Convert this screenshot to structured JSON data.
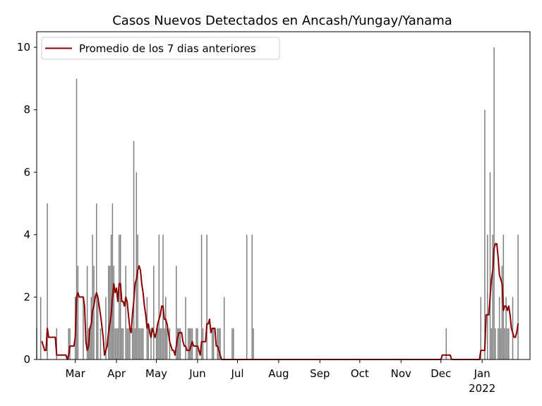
{
  "chart_data": {
    "type": "bar",
    "title": "Casos Nuevos Detectados en Ancash/Yungay/Yanama",
    "xlabel": "",
    "ylabel": "",
    "ylim": [
      0,
      10.5
    ],
    "yticks": [
      0,
      2,
      4,
      6,
      8,
      10
    ],
    "x_range": [
      "2021-01-31",
      "2022-02-06"
    ],
    "xtick_labels": [
      {
        "date": "2021-03-01",
        "label": "Mar"
      },
      {
        "date": "2021-04-01",
        "label": "Apr"
      },
      {
        "date": "2021-05-01",
        "label": "May"
      },
      {
        "date": "2021-06-01",
        "label": "Jun"
      },
      {
        "date": "2021-07-01",
        "label": "Jul"
      },
      {
        "date": "2021-08-01",
        "label": "Aug"
      },
      {
        "date": "2021-09-01",
        "label": "Sep"
      },
      {
        "date": "2021-10-01",
        "label": "Oct"
      },
      {
        "date": "2021-11-01",
        "label": "Nov"
      },
      {
        "date": "2021-12-01",
        "label": "Dec"
      },
      {
        "date": "2022-01-01",
        "label": "Jan",
        "sublabel": "2022"
      }
    ],
    "grid": false,
    "legend_position": "top-left",
    "bar_color": "#808080",
    "line_color": "#8b0000",
    "series": [
      {
        "type": "bar",
        "points": [
          [
            "2021-01-31",
            1
          ],
          [
            "2021-02-03",
            2
          ],
          [
            "2021-02-08",
            5
          ],
          [
            "2021-02-15",
            1
          ],
          [
            "2021-02-24",
            1
          ],
          [
            "2021-02-25",
            1
          ],
          [
            "2021-03-01",
            2
          ],
          [
            "2021-03-02",
            9
          ],
          [
            "2021-03-03",
            3
          ],
          [
            "2021-03-07",
            2
          ],
          [
            "2021-03-10",
            3
          ],
          [
            "2021-03-11",
            1
          ],
          [
            "2021-03-12",
            1
          ],
          [
            "2021-03-13",
            2
          ],
          [
            "2021-03-14",
            4
          ],
          [
            "2021-03-15",
            3
          ],
          [
            "2021-03-17",
            5
          ],
          [
            "2021-03-18",
            2
          ],
          [
            "2021-03-20",
            1
          ],
          [
            "2021-03-24",
            2
          ],
          [
            "2021-03-26",
            3
          ],
          [
            "2021-03-27",
            3
          ],
          [
            "2021-03-28",
            4
          ],
          [
            "2021-03-29",
            5
          ],
          [
            "2021-03-30",
            3
          ],
          [
            "2021-03-31",
            1
          ],
          [
            "2021-04-01",
            1
          ],
          [
            "2021-04-02",
            1
          ],
          [
            "2021-04-03",
            4
          ],
          [
            "2021-04-04",
            4
          ],
          [
            "2021-04-05",
            1
          ],
          [
            "2021-04-06",
            1
          ],
          [
            "2021-04-08",
            3
          ],
          [
            "2021-04-09",
            1
          ],
          [
            "2021-04-10",
            1
          ],
          [
            "2021-04-11",
            1
          ],
          [
            "2021-04-13",
            1
          ],
          [
            "2021-04-14",
            7
          ],
          [
            "2021-04-15",
            1
          ],
          [
            "2021-04-16",
            6
          ],
          [
            "2021-04-17",
            4
          ],
          [
            "2021-04-18",
            1
          ],
          [
            "2021-04-19",
            1
          ],
          [
            "2021-04-20",
            1
          ],
          [
            "2021-04-21",
            1
          ],
          [
            "2021-04-24",
            2
          ],
          [
            "2021-04-25",
            1
          ],
          [
            "2021-04-27",
            1
          ],
          [
            "2021-04-29",
            3
          ],
          [
            "2021-05-01",
            1
          ],
          [
            "2021-05-02",
            1
          ],
          [
            "2021-05-03",
            4
          ],
          [
            "2021-05-04",
            1
          ],
          [
            "2021-05-05",
            1
          ],
          [
            "2021-05-06",
            4
          ],
          [
            "2021-05-07",
            1
          ],
          [
            "2021-05-08",
            2
          ],
          [
            "2021-05-09",
            1
          ],
          [
            "2021-05-11",
            1
          ],
          [
            "2021-05-16",
            3
          ],
          [
            "2021-05-17",
            1
          ],
          [
            "2021-05-18",
            1
          ],
          [
            "2021-05-19",
            1
          ],
          [
            "2021-05-23",
            2
          ],
          [
            "2021-05-25",
            1
          ],
          [
            "2021-05-26",
            1
          ],
          [
            "2021-05-27",
            1
          ],
          [
            "2021-05-28",
            1
          ],
          [
            "2021-05-31",
            1
          ],
          [
            "2021-06-01",
            1
          ],
          [
            "2021-06-04",
            4
          ],
          [
            "2021-06-05",
            1
          ],
          [
            "2021-06-08",
            4
          ]
        ]
      },
      {
        "type": "line",
        "name": "Promedio de los 7 dias anteriores",
        "points": [
          [
            "2021-02-04",
            0.57
          ],
          [
            "2021-02-06",
            0.29
          ],
          [
            "2021-02-07",
            0.29
          ],
          [
            "2021-02-08",
            1.0
          ],
          [
            "2021-02-09",
            0.71
          ],
          [
            "2021-02-14",
            0.71
          ],
          [
            "2021-02-15",
            0.14
          ],
          [
            "2021-02-22",
            0.14
          ],
          [
            "2021-02-23",
            0.0
          ],
          [
            "2021-02-24",
            0.14
          ],
          [
            "2021-02-25",
            0.43
          ],
          [
            "2021-02-28",
            0.43
          ],
          [
            "2021-03-01",
            0.71
          ],
          [
            "2021-03-02",
            2.0
          ],
          [
            "2021-03-03",
            2.14
          ],
          [
            "2021-03-04",
            2.0
          ],
          [
            "2021-03-07",
            2.0
          ],
          [
            "2021-03-08",
            1.71
          ],
          [
            "2021-03-09",
            0.57
          ],
          [
            "2021-03-10",
            0.29
          ],
          [
            "2021-03-11",
            0.43
          ],
          [
            "2021-03-12",
            1.0
          ],
          [
            "2021-03-13",
            1.14
          ],
          [
            "2021-03-14",
            1.57
          ],
          [
            "2021-03-15",
            1.71
          ],
          [
            "2021-03-16",
            2.0
          ],
          [
            "2021-03-17",
            2.14
          ],
          [
            "2021-03-18",
            2.0
          ],
          [
            "2021-03-20",
            1.43
          ],
          [
            "2021-03-22",
            0.71
          ],
          [
            "2021-03-23",
            0.14
          ],
          [
            "2021-03-24",
            0.29
          ],
          [
            "2021-03-25",
            0.43
          ],
          [
            "2021-03-26",
            0.86
          ],
          [
            "2021-03-27",
            1.14
          ],
          [
            "2021-03-28",
            1.43
          ],
          [
            "2021-03-29",
            2.0
          ],
          [
            "2021-03-30",
            2.43
          ],
          [
            "2021-03-31",
            2.14
          ],
          [
            "2021-04-01",
            2.29
          ],
          [
            "2021-04-02",
            1.86
          ],
          [
            "2021-04-03",
            2.43
          ],
          [
            "2021-04-04",
            2.43
          ],
          [
            "2021-04-05",
            1.86
          ],
          [
            "2021-04-06",
            1.86
          ],
          [
            "2021-04-07",
            1.71
          ],
          [
            "2021-04-08",
            2.0
          ],
          [
            "2021-04-09",
            1.86
          ],
          [
            "2021-04-10",
            1.43
          ],
          [
            "2021-04-11",
            1.0
          ],
          [
            "2021-04-12",
            0.86
          ],
          [
            "2021-04-13",
            1.43
          ],
          [
            "2021-04-14",
            1.86
          ],
          [
            "2021-04-15",
            2.43
          ],
          [
            "2021-04-16",
            2.57
          ],
          [
            "2021-04-17",
            2.86
          ],
          [
            "2021-04-18",
            3.0
          ],
          [
            "2021-04-19",
            2.86
          ],
          [
            "2021-04-20",
            2.43
          ],
          [
            "2021-04-21",
            2.14
          ],
          [
            "2021-04-22",
            1.71
          ],
          [
            "2021-04-23",
            1.43
          ],
          [
            "2021-04-24",
            1.0
          ],
          [
            "2021-04-25",
            1.14
          ],
          [
            "2021-04-26",
            0.86
          ],
          [
            "2021-04-27",
            0.71
          ],
          [
            "2021-04-28",
            1.0
          ],
          [
            "2021-04-29",
            0.86
          ],
          [
            "2021-04-30",
            0.71
          ],
          [
            "2021-05-01",
            0.86
          ],
          [
            "2021-05-02",
            1.14
          ],
          [
            "2021-05-03",
            1.29
          ],
          [
            "2021-05-04",
            1.43
          ],
          [
            "2021-05-05",
            1.71
          ],
          [
            "2021-05-06",
            1.71
          ],
          [
            "2021-05-07",
            1.29
          ],
          [
            "2021-05-08",
            1.29
          ],
          [
            "2021-05-09",
            1.14
          ],
          [
            "2021-05-10",
            0.86
          ],
          [
            "2021-05-11",
            0.57
          ],
          [
            "2021-05-12",
            0.43
          ],
          [
            "2021-05-13",
            0.29
          ],
          [
            "2021-05-14",
            0.29
          ],
          [
            "2021-05-15",
            0.14
          ],
          [
            "2021-05-16",
            0.43
          ],
          [
            "2021-05-17",
            0.71
          ],
          [
            "2021-05-18",
            0.86
          ],
          [
            "2021-05-20",
            0.86
          ],
          [
            "2021-05-21",
            0.57
          ],
          [
            "2021-05-22",
            0.43
          ],
          [
            "2021-05-23",
            0.43
          ],
          [
            "2021-05-24",
            0.29
          ],
          [
            "2021-05-25",
            0.29
          ],
          [
            "2021-05-26",
            0.29
          ],
          [
            "2021-05-27",
            0.43
          ],
          [
            "2021-05-28",
            0.57
          ],
          [
            "2021-05-29",
            0.43
          ],
          [
            "2021-05-30",
            0.43
          ],
          [
            "2021-05-31",
            0.43
          ],
          [
            "2021-06-01",
            0.43
          ],
          [
            "2021-06-02",
            0.29
          ],
          [
            "2021-06-03",
            0.14
          ],
          [
            "2021-06-04",
            0.57
          ],
          [
            "2021-06-07",
            0.57
          ],
          [
            "2021-06-08",
            1.14
          ],
          [
            "2021-06-09",
            1.14
          ],
          [
            "2021-06-10",
            1.29
          ],
          [
            "2021-06-11",
            0.86
          ],
          [
            "2021-06-12",
            1.0
          ],
          [
            "2021-06-14",
            1.0
          ],
          [
            "2021-06-15",
            0.43
          ],
          [
            "2021-06-16",
            0.43
          ],
          [
            "2021-06-18",
            0.14
          ],
          [
            "2021-06-19",
            0.0
          ],
          [
            "2021-12-01",
            0.0
          ],
          [
            "2021-12-02",
            0.14
          ],
          [
            "2021-12-08",
            0.14
          ],
          [
            "2021-12-09",
            0.0
          ],
          [
            "2021-12-30",
            0.0
          ],
          [
            "2021-12-31",
            0.29
          ],
          [
            "2022-01-03",
            0.29
          ],
          [
            "2022-01-04",
            1.43
          ],
          [
            "2022-01-06",
            1.43
          ],
          [
            "2022-01-07",
            2.0
          ],
          [
            "2022-01-08",
            2.57
          ],
          [
            "2022-01-09",
            2.86
          ],
          [
            "2022-01-10",
            3.57
          ],
          [
            "2022-01-11",
            3.71
          ],
          [
            "2022-01-12",
            3.71
          ],
          [
            "2022-01-13",
            3.29
          ],
          [
            "2022-01-14",
            2.71
          ],
          [
            "2022-01-15",
            2.57
          ],
          [
            "2022-01-16",
            2.43
          ],
          [
            "2022-01-17",
            1.57
          ],
          [
            "2022-01-18",
            1.71
          ],
          [
            "2022-01-19",
            1.71
          ],
          [
            "2022-01-20",
            1.57
          ],
          [
            "2022-01-21",
            1.71
          ],
          [
            "2022-01-22",
            1.43
          ],
          [
            "2022-01-23",
            1.0
          ],
          [
            "2022-01-24",
            0.86
          ],
          [
            "2022-01-25",
            0.71
          ],
          [
            "2022-01-26",
            0.71
          ],
          [
            "2022-01-27",
            0.86
          ],
          [
            "2022-01-28",
            1.14
          ]
        ]
      },
      {
        "type": "bar",
        "points": [
          [
            "2021-06-12",
            1
          ],
          [
            "2021-06-13",
            1
          ],
          [
            "2021-06-16",
            1
          ],
          [
            "2021-06-17",
            1
          ],
          [
            "2021-06-18",
            1
          ],
          [
            "2021-06-21",
            2
          ],
          [
            "2021-06-27",
            1
          ],
          [
            "2021-06-28",
            1
          ],
          [
            "2021-07-08",
            4
          ],
          [
            "2021-07-12",
            4
          ],
          [
            "2021-07-13",
            1
          ],
          [
            "2021-12-05",
            1
          ],
          [
            "2021-12-31",
            2
          ],
          [
            "2022-01-03",
            8
          ],
          [
            "2022-01-05",
            4
          ],
          [
            "2022-01-07",
            6
          ],
          [
            "2022-01-08",
            1
          ],
          [
            "2022-01-09",
            4
          ],
          [
            "2022-01-10",
            10
          ],
          [
            "2022-01-11",
            1
          ],
          [
            "2022-01-13",
            1
          ],
          [
            "2022-01-14",
            2
          ],
          [
            "2022-01-15",
            1
          ],
          [
            "2022-01-16",
            3
          ],
          [
            "2022-01-17",
            4
          ],
          [
            "2022-01-18",
            1
          ],
          [
            "2022-01-19",
            2
          ],
          [
            "2022-01-20",
            1
          ],
          [
            "2022-01-21",
            1
          ],
          [
            "2022-01-24",
            2
          ],
          [
            "2022-01-28",
            4
          ]
        ]
      }
    ]
  }
}
